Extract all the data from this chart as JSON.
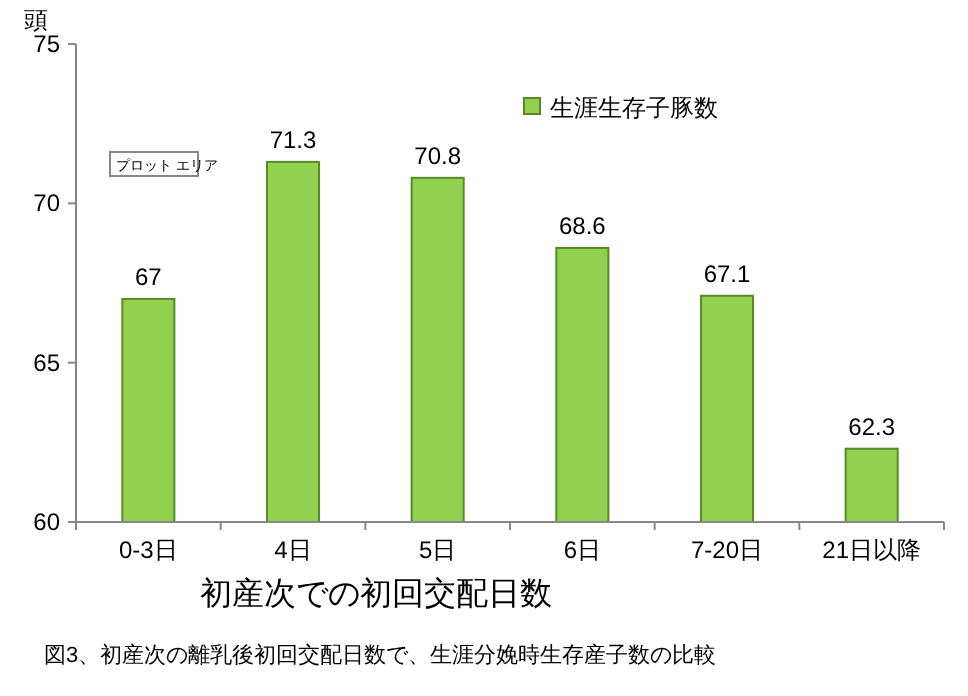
{
  "chart_data": {
    "type": "bar",
    "ylabel": "頭",
    "xlabel": "初産次での初回交配日数",
    "categories": [
      "0-3日",
      "4日",
      "5日",
      "6日",
      "7-20日",
      "21日以降"
    ],
    "series": [
      {
        "name": "生涯生存子豚数",
        "color": "#92d050",
        "values": [
          67,
          71.3,
          70.8,
          68.6,
          67.1,
          62.3
        ]
      }
    ],
    "ylim": [
      60,
      75
    ],
    "yticks": [
      60,
      65,
      70,
      75
    ],
    "data_labels": true,
    "legend": "top right",
    "grid": false,
    "annotations": [
      "プロット エリア",
      "図3、初産次の離乳後初回交配日数で、生涯分娩時生存産子数の比較"
    ]
  }
}
